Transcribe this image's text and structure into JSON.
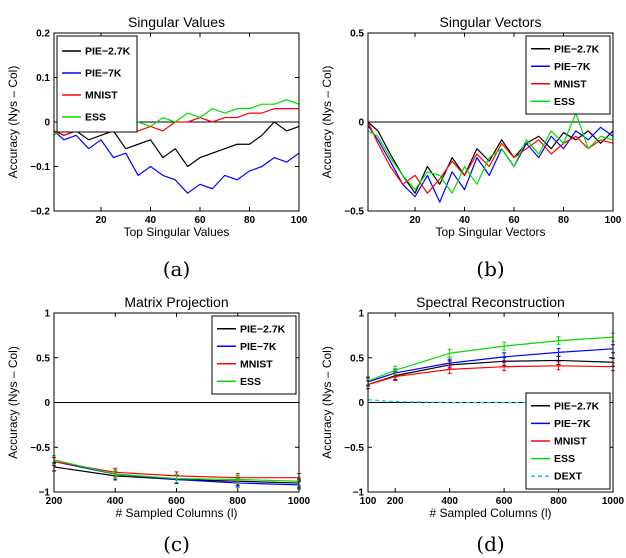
{
  "chart_data": [
    {
      "id": "a",
      "type": "line",
      "title": "Singular Values",
      "xlabel": "Top Singular Values",
      "ylabel": "Accuracy (Nys – Col)",
      "caption": "(a)",
      "xlim": [
        1,
        100
      ],
      "ylim": [
        -0.2,
        0.2
      ],
      "xticks": [
        20,
        40,
        60,
        80,
        100
      ],
      "yticks": [
        -0.2,
        -0.1,
        0,
        0.1,
        0.2
      ],
      "ytick_labels": [
        "−0.2",
        "−0.1",
        "0",
        "0.1",
        "0.2"
      ],
      "zero_line": true,
      "legend_position": "top-left",
      "series": [
        {
          "name": "PIE−2.7K",
          "color": "#000000",
          "x": [
            1,
            5,
            10,
            15,
            20,
            25,
            30,
            35,
            40,
            45,
            50,
            55,
            60,
            65,
            70,
            75,
            80,
            85,
            90,
            95,
            100
          ],
          "y": [
            -0.02,
            -0.03,
            -0.02,
            -0.04,
            -0.03,
            -0.02,
            -0.06,
            -0.05,
            -0.04,
            -0.08,
            -0.06,
            -0.1,
            -0.08,
            -0.07,
            -0.06,
            -0.05,
            -0.05,
            -0.03,
            0.0,
            -0.02,
            -0.01
          ]
        },
        {
          "name": "PIE−7K",
          "color": "#0000ff",
          "x": [
            1,
            5,
            10,
            15,
            20,
            25,
            30,
            35,
            40,
            45,
            50,
            55,
            60,
            65,
            70,
            75,
            80,
            85,
            90,
            95,
            100
          ],
          "y": [
            -0.02,
            -0.04,
            -0.03,
            -0.06,
            -0.04,
            -0.08,
            -0.07,
            -0.12,
            -0.1,
            -0.12,
            -0.13,
            -0.16,
            -0.14,
            -0.15,
            -0.12,
            -0.13,
            -0.11,
            -0.1,
            -0.08,
            -0.09,
            -0.07
          ]
        },
        {
          "name": "MNIST",
          "color": "#ff0000",
          "x": [
            1,
            5,
            10,
            15,
            20,
            25,
            30,
            35,
            40,
            45,
            50,
            55,
            60,
            65,
            70,
            75,
            80,
            85,
            90,
            95,
            100
          ],
          "y": [
            -0.02,
            -0.03,
            -0.02,
            0.0,
            -0.02,
            0.0,
            -0.01,
            -0.02,
            -0.01,
            -0.02,
            0.0,
            0.0,
            0.01,
            0.0,
            0.01,
            0.01,
            0.02,
            0.02,
            0.03,
            0.03,
            0.03
          ]
        },
        {
          "name": "ESS",
          "color": "#00dd00",
          "x": [
            1,
            5,
            10,
            15,
            20,
            25,
            30,
            35,
            40,
            45,
            50,
            55,
            60,
            65,
            70,
            75,
            80,
            85,
            90,
            95,
            100
          ],
          "y": [
            -0.03,
            -0.01,
            -0.02,
            -0.02,
            -0.01,
            0.0,
            -0.02,
            0.0,
            -0.01,
            0.01,
            0.0,
            0.02,
            0.01,
            0.03,
            0.02,
            0.03,
            0.03,
            0.04,
            0.04,
            0.05,
            0.04
          ]
        }
      ]
    },
    {
      "id": "b",
      "type": "line",
      "title": "Singular Vectors",
      "xlabel": "Top Singular Vectors",
      "ylabel": "Accuracy (Nys – Col)",
      "caption": "(b)",
      "xlim": [
        1,
        100
      ],
      "ylim": [
        -0.5,
        0.5
      ],
      "xticks": [
        20,
        40,
        60,
        80,
        100
      ],
      "yticks": [
        -0.5,
        0,
        0.5
      ],
      "ytick_labels": [
        "−0.5",
        "0",
        "0.5"
      ],
      "zero_line": true,
      "legend_position": "top-right",
      "series": [
        {
          "name": "PIE−2.7K",
          "color": "#000000",
          "x": [
            1,
            5,
            10,
            15,
            20,
            25,
            30,
            35,
            40,
            45,
            50,
            55,
            60,
            65,
            70,
            75,
            80,
            85,
            90,
            95,
            100
          ],
          "y": [
            0.0,
            -0.05,
            -0.18,
            -0.3,
            -0.4,
            -0.25,
            -0.35,
            -0.2,
            -0.3,
            -0.15,
            -0.22,
            -0.1,
            -0.2,
            -0.12,
            -0.08,
            -0.15,
            -0.06,
            -0.1,
            -0.05,
            -0.12,
            -0.05
          ]
        },
        {
          "name": "PIE−7K",
          "color": "#0000ff",
          "x": [
            1,
            5,
            10,
            15,
            20,
            25,
            30,
            35,
            40,
            45,
            50,
            55,
            60,
            65,
            70,
            75,
            80,
            85,
            90,
            95,
            100
          ],
          "y": [
            -0.02,
            -0.1,
            -0.22,
            -0.35,
            -0.42,
            -0.3,
            -0.45,
            -0.28,
            -0.38,
            -0.2,
            -0.3,
            -0.15,
            -0.25,
            -0.12,
            -0.2,
            -0.08,
            -0.15,
            -0.05,
            -0.1,
            -0.03,
            -0.08
          ]
        },
        {
          "name": "MNIST",
          "color": "#ff0000",
          "x": [
            1,
            5,
            10,
            15,
            20,
            25,
            30,
            35,
            40,
            45,
            50,
            55,
            60,
            65,
            70,
            75,
            80,
            85,
            90,
            95,
            100
          ],
          "y": [
            0.0,
            -0.12,
            -0.25,
            -0.35,
            -0.3,
            -0.4,
            -0.32,
            -0.22,
            -0.3,
            -0.18,
            -0.25,
            -0.12,
            -0.2,
            -0.15,
            -0.1,
            -0.18,
            -0.12,
            -0.08,
            -0.15,
            -0.1,
            -0.12
          ]
        },
        {
          "name": "ESS",
          "color": "#00dd00",
          "x": [
            1,
            5,
            10,
            15,
            20,
            25,
            30,
            35,
            40,
            45,
            50,
            55,
            60,
            65,
            70,
            75,
            80,
            85,
            90,
            95,
            100
          ],
          "y": [
            -0.05,
            -0.08,
            -0.2,
            -0.3,
            -0.38,
            -0.28,
            -0.3,
            -0.4,
            -0.25,
            -0.35,
            -0.2,
            -0.15,
            -0.25,
            -0.1,
            -0.18,
            -0.05,
            -0.12,
            0.05,
            -0.15,
            -0.08,
            -0.1
          ]
        }
      ]
    },
    {
      "id": "c",
      "type": "line",
      "title": "Matrix Projection",
      "xlabel": "# Sampled Columns (l)",
      "ylabel": "Accuracy (Nys – Col)",
      "caption": "(c)",
      "xlim": [
        200,
        1000
      ],
      "ylim": [
        -1,
        1
      ],
      "xticks": [
        200,
        400,
        600,
        800,
        1000
      ],
      "yticks": [
        -1,
        -0.5,
        0,
        0.5,
        1
      ],
      "ytick_labels": [
        "−1",
        "−0.5",
        "0",
        "0.5",
        "1"
      ],
      "zero_line": true,
      "error_bars": true,
      "legend_position": "top-right",
      "series": [
        {
          "name": "PIE−2.7K",
          "color": "#000000",
          "x": [
            200,
            400,
            600,
            800,
            1000
          ],
          "y": [
            -0.72,
            -0.82,
            -0.86,
            -0.88,
            -0.9
          ]
        },
        {
          "name": "PIE−7K",
          "color": "#0000ff",
          "x": [
            200,
            400,
            600,
            800,
            1000
          ],
          "y": [
            -0.66,
            -0.8,
            -0.86,
            -0.9,
            -0.92
          ]
        },
        {
          "name": "MNIST",
          "color": "#ff0000",
          "x": [
            200,
            400,
            600,
            800,
            1000
          ],
          "y": [
            -0.66,
            -0.78,
            -0.82,
            -0.84,
            -0.84
          ]
        },
        {
          "name": "ESS",
          "color": "#00dd00",
          "x": [
            200,
            400,
            600,
            800,
            1000
          ],
          "y": [
            -0.64,
            -0.8,
            -0.85,
            -0.86,
            -0.88
          ]
        }
      ]
    },
    {
      "id": "d",
      "type": "line",
      "title": "Spectral Reconstruction",
      "xlabel": "# Sampled Columns (l)",
      "ylabel": "Accuracy (Nys – Col)",
      "caption": "(d)",
      "xlim": [
        100,
        1000
      ],
      "ylim": [
        -1,
        1
      ],
      "xticks": [
        100,
        200,
        400,
        600,
        800,
        1000
      ],
      "yticks": [
        -1,
        -0.5,
        0,
        0.5,
        1
      ],
      "ytick_labels": [
        "−1",
        "−0.5",
        "0",
        "0.5",
        "1"
      ],
      "zero_line": true,
      "error_bars": true,
      "legend_position": "bottom-right",
      "series": [
        {
          "name": "PIE−2.7K",
          "color": "#000000",
          "x": [
            100,
            200,
            400,
            600,
            800,
            1000
          ],
          "y": [
            0.2,
            0.3,
            0.42,
            0.46,
            0.47,
            0.45
          ]
        },
        {
          "name": "PIE−7K",
          "color": "#0000ff",
          "x": [
            100,
            200,
            400,
            600,
            800,
            1000
          ],
          "y": [
            0.23,
            0.33,
            0.44,
            0.51,
            0.56,
            0.6
          ]
        },
        {
          "name": "MNIST",
          "color": "#ff0000",
          "x": [
            100,
            200,
            400,
            600,
            800,
            1000
          ],
          "y": [
            0.2,
            0.29,
            0.37,
            0.4,
            0.41,
            0.4
          ]
        },
        {
          "name": "ESS",
          "color": "#00dd00",
          "x": [
            100,
            200,
            400,
            600,
            800,
            1000
          ],
          "y": [
            0.24,
            0.36,
            0.55,
            0.63,
            0.69,
            0.73
          ]
        },
        {
          "name": "DEXT",
          "color": "#00ccee",
          "dashed": true,
          "x": [
            100,
            200,
            400,
            600,
            800,
            1000
          ],
          "y": [
            0.03,
            0.01,
            0.0,
            0.0,
            0.0,
            0.0
          ]
        }
      ]
    }
  ]
}
